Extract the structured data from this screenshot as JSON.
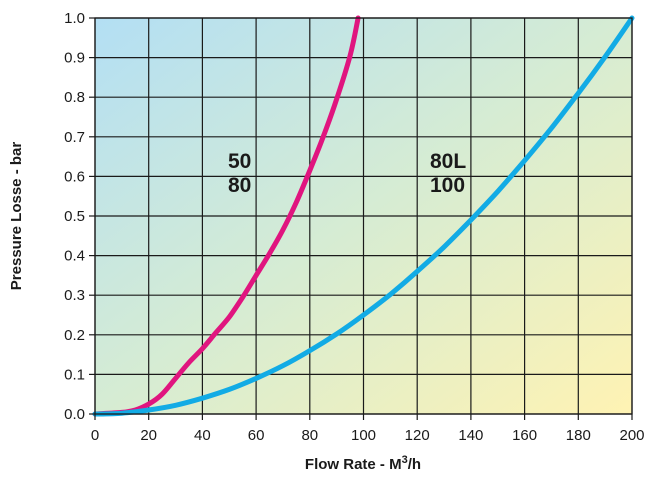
{
  "chart_data": {
    "type": "line",
    "xlabel": "Flow Rate - M³/h",
    "xlabel_main": "Flow Rate - M",
    "xlabel_sup": "3",
    "xlabel_tail": "/h",
    "ylabel": "Pressure Losse - bar",
    "xlim": [
      0,
      200
    ],
    "ylim": [
      0,
      1.0
    ],
    "x_ticks": [
      "0",
      "20",
      "40",
      "60",
      "80",
      "100",
      "120",
      "140",
      "160",
      "180",
      "200"
    ],
    "y_ticks": [
      "0.0",
      "0.1",
      "0.2",
      "0.3",
      "0.4",
      "0.5",
      "0.6",
      "0.7",
      "0.8",
      "0.9",
      "1.0"
    ],
    "grid": true,
    "series": [
      {
        "label_lines": [
          "50",
          "80"
        ],
        "color": "#e0157f",
        "x": [
          0,
          10,
          15,
          20,
          25,
          30,
          35,
          40,
          45,
          50,
          55,
          60,
          65,
          70,
          75,
          80,
          85,
          90,
          95,
          98
        ],
        "y": [
          0,
          0.004,
          0.01,
          0.025,
          0.05,
          0.09,
          0.13,
          0.165,
          0.205,
          0.245,
          0.295,
          0.35,
          0.405,
          0.465,
          0.535,
          0.615,
          0.7,
          0.795,
          0.905,
          1.0
        ]
      },
      {
        "label_lines": [
          "80L",
          "100"
        ],
        "color": "#12abe5",
        "x": [
          0,
          10,
          20,
          30,
          40,
          50,
          60,
          70,
          80,
          90,
          100,
          110,
          120,
          130,
          140,
          150,
          160,
          170,
          180,
          190,
          200
        ],
        "y": [
          0,
          0.002,
          0.01,
          0.022,
          0.04,
          0.062,
          0.09,
          0.122,
          0.16,
          0.202,
          0.25,
          0.302,
          0.36,
          0.422,
          0.49,
          0.562,
          0.64,
          0.722,
          0.81,
          0.902,
          1.0
        ]
      }
    ]
  }
}
